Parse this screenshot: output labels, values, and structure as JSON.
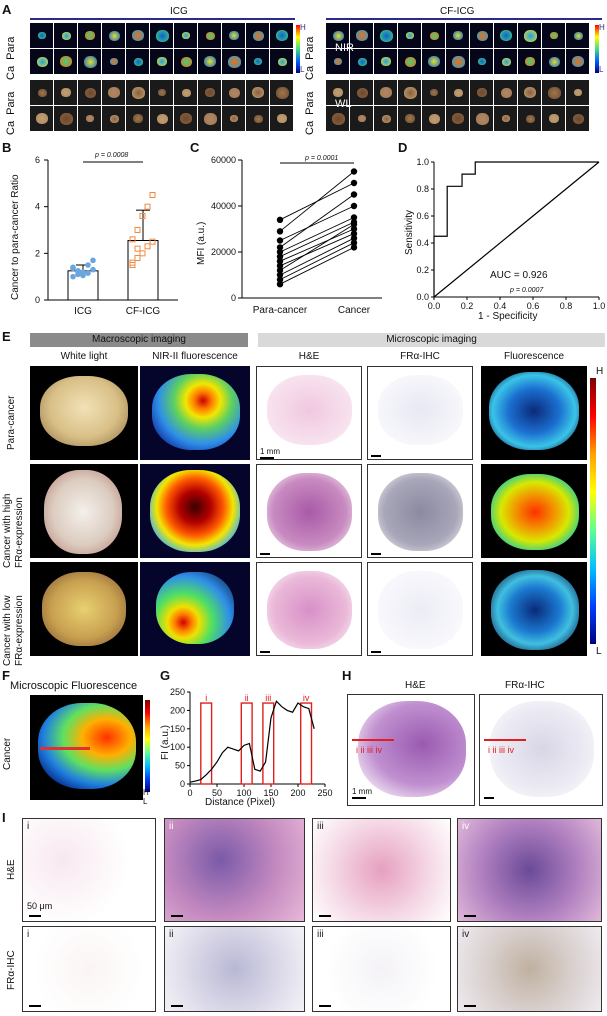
{
  "panelA": {
    "letter": "A",
    "group1": "ICG",
    "group2": "CF-ICG",
    "row_labels": [
      "Ca",
      "Para",
      "Ca",
      "Para"
    ],
    "nir_label": "NIR",
    "wl_label": "WL",
    "cb_high": "H",
    "cb_low": "L"
  },
  "panelB": {
    "letter": "B",
    "ylabel": "Cancer to para-cancer Ratio",
    "pvalue": "p = 0.0008",
    "yticks": [
      "0",
      "2",
      "4",
      "6"
    ],
    "groups": [
      "ICG",
      "CF-ICG"
    ],
    "chart_data": {
      "type": "bar",
      "categories": [
        "ICG",
        "CF-ICG"
      ],
      "values": [
        1.25,
        2.55
      ],
      "errors": [
        0.25,
        1.3
      ],
      "ylim": [
        0,
        6
      ],
      "points": {
        "ICG": [
          1.0,
          1.1,
          1.2,
          1.15,
          1.3,
          1.4,
          1.25,
          1.05,
          1.5,
          1.7,
          1.35,
          1.2
        ],
        "CF-ICG": [
          1.6,
          1.8,
          2.0,
          2.3,
          2.5,
          2.6,
          3.0,
          3.6,
          4.0,
          4.5,
          1.5,
          2.2
        ]
      }
    }
  },
  "panelC": {
    "letter": "C",
    "ylabel": "MFI (a.u.)",
    "pvalue": "p = 0.0001",
    "yticks": [
      "0",
      "20000",
      "40000",
      "60000"
    ],
    "groups": [
      "Para-cancer",
      "Cancer"
    ],
    "chart_data": {
      "type": "line",
      "categories": [
        "Para-cancer",
        "Cancer"
      ],
      "ylim": [
        0,
        60000
      ],
      "pairs": [
        [
          34000,
          50000
        ],
        [
          29000,
          55000
        ],
        [
          25000,
          40000
        ],
        [
          22000,
          45000
        ],
        [
          20000,
          35000
        ],
        [
          18000,
          33000
        ],
        [
          16000,
          30000
        ],
        [
          14000,
          28000
        ],
        [
          12000,
          32000
        ],
        [
          10000,
          26000
        ],
        [
          8000,
          24000
        ],
        [
          6000,
          22000
        ]
      ]
    }
  },
  "panelD": {
    "letter": "D",
    "ylabel": "Sensitivity",
    "xlabel": "1 - Specificity",
    "auc": "AUC = 0.926",
    "pvalue": "p = 0.0007",
    "ticks": [
      "0.0",
      "0.2",
      "0.4",
      "0.6",
      "0.8",
      "1.0"
    ],
    "chart_data": {
      "type": "line",
      "x": [
        0,
        0,
        0.08,
        0.08,
        0.17,
        0.17,
        0.25,
        0.25,
        1.0
      ],
      "y": [
        0,
        0.45,
        0.45,
        0.82,
        0.82,
        0.91,
        0.91,
        1.0,
        1.0
      ],
      "xlim": [
        0,
        1
      ],
      "ylim": [
        0,
        1
      ]
    }
  },
  "panelE": {
    "letter": "E",
    "macro_header": "Macroscopic imaging",
    "micro_header": "Microscopic imaging",
    "columns": [
      "White light",
      "NIR-II fluorescence",
      "H&E",
      "FRα-IHC",
      "Fluorescence"
    ],
    "rows": [
      "Para-cancer",
      "Cancer with high\nFRα-expression",
      "Cancer with low\nFRα-expression"
    ],
    "row1": "Cancer with high",
    "row1b": "FRα-expression",
    "row2": "Cancer with low",
    "row2b": "FRα-expression",
    "scale": "1 mm",
    "cb_high": "H",
    "cb_low": "L"
  },
  "panelF": {
    "letter": "F",
    "title": "Microscopic Fluorescence",
    "side": "Cancer",
    "cb_high": "H",
    "cb_low": "L"
  },
  "panelG": {
    "letter": "G",
    "ylabel": "FI (a.u.)",
    "xlabel": "Distance (Pixel)",
    "yticks": [
      "0",
      "50",
      "100",
      "150",
      "200",
      "250"
    ],
    "xticks": [
      "0",
      "50",
      "100",
      "150",
      "200",
      "250"
    ],
    "regions": [
      "i",
      "ii",
      "iii",
      "iv"
    ],
    "chart_data": {
      "type": "line",
      "x": [
        0,
        10,
        20,
        30,
        40,
        50,
        60,
        70,
        80,
        90,
        100,
        110,
        120,
        130,
        140,
        150,
        160,
        170,
        180,
        190,
        200,
        210,
        220,
        230
      ],
      "y": [
        5,
        8,
        12,
        25,
        40,
        60,
        85,
        100,
        95,
        90,
        105,
        110,
        40,
        35,
        60,
        180,
        225,
        210,
        200,
        195,
        220,
        210,
        205,
        150
      ],
      "xlim": [
        0,
        250
      ],
      "ylim": [
        0,
        250
      ]
    }
  },
  "panelH": {
    "letter": "H",
    "col1": "H&E",
    "col2": "FRα-IHC",
    "marks": "i ii iii iv",
    "scale": "1 mm"
  },
  "panelI": {
    "letter": "I",
    "row1": "H&E",
    "row2": "FRα-IHC",
    "labels": [
      "i",
      "ii",
      "iii",
      "iv"
    ],
    "scale": "50 μm"
  }
}
